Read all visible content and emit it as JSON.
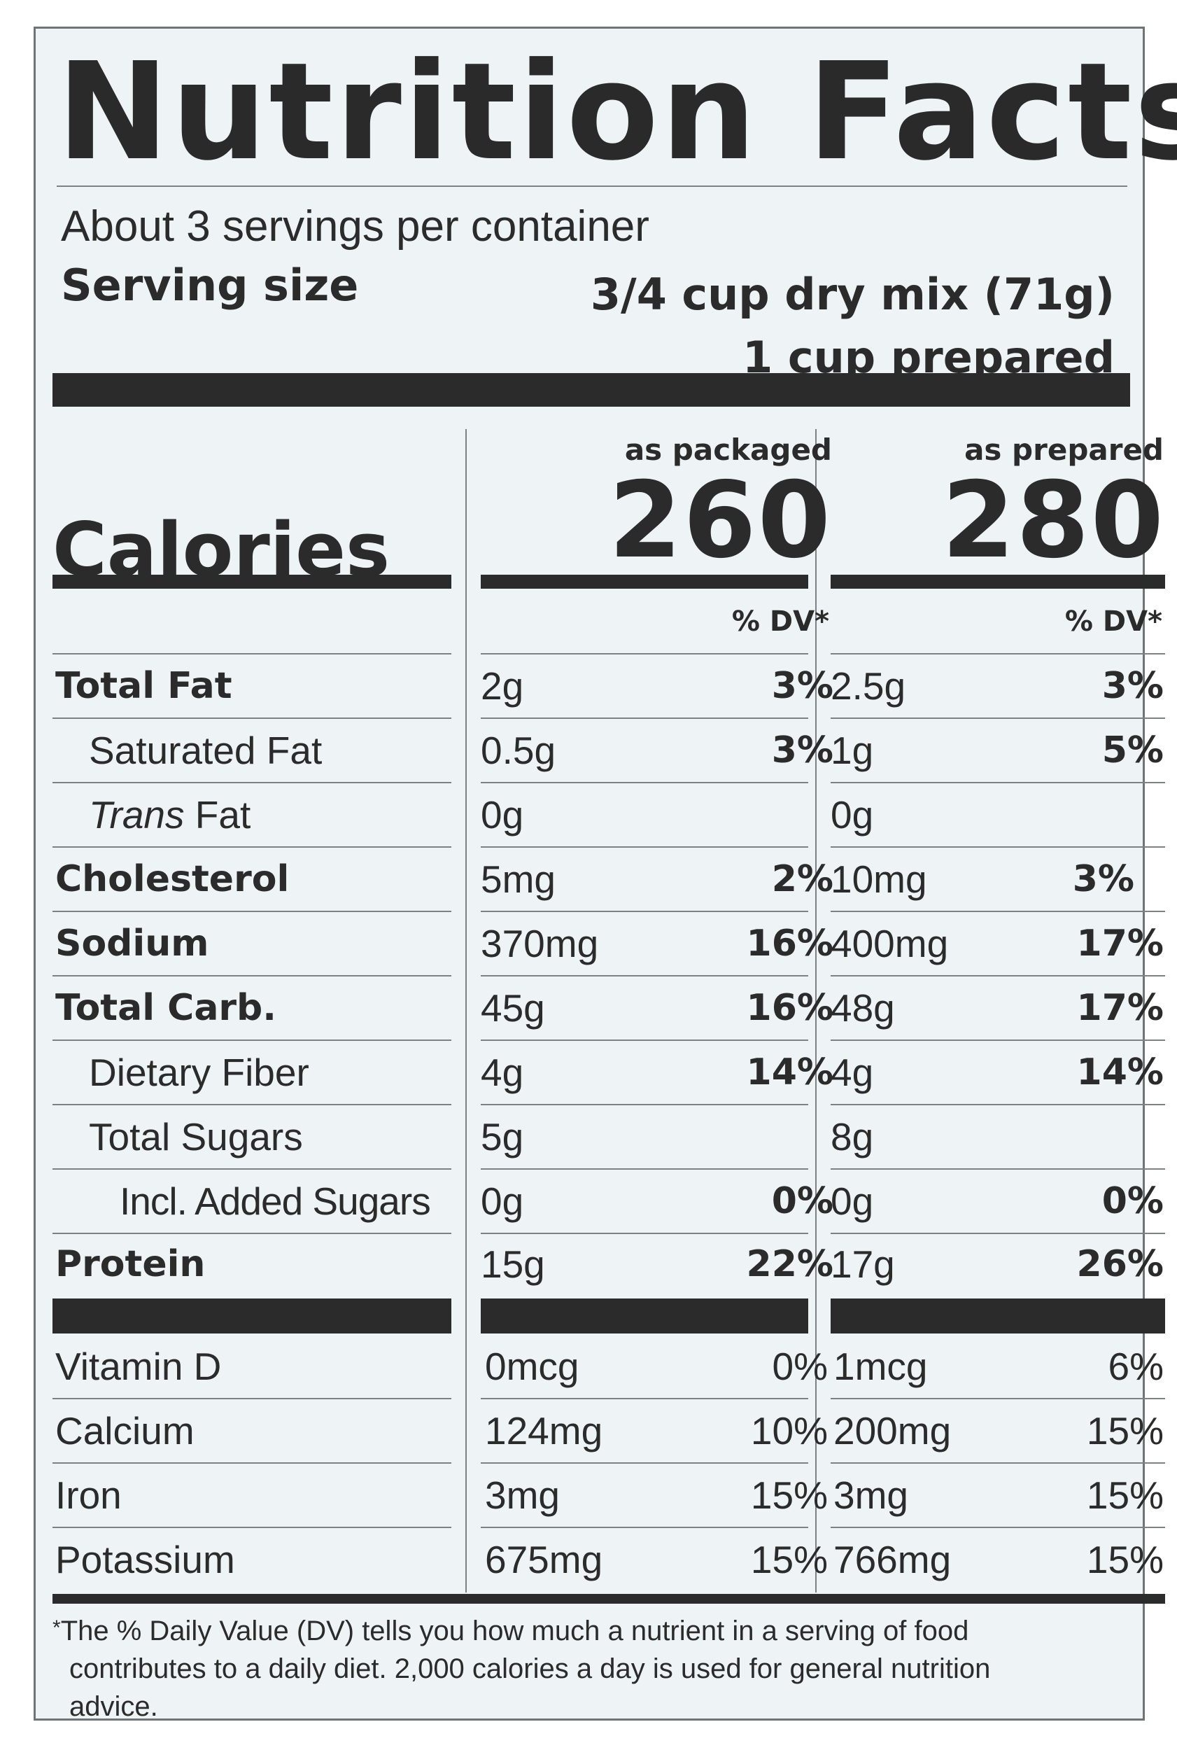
{
  "title": "Nutrition Facts",
  "servings_per_container": "About 3 servings per container",
  "serving_size": {
    "label": "Serving size",
    "dry": "3/4 cup dry mix (71g)",
    "prepared": "1 cup prepared"
  },
  "columns": {
    "packaged_header": "as packaged",
    "prepared_header": "as prepared",
    "dv_header": "% DV*"
  },
  "calories": {
    "label": "Calories",
    "packaged": "260",
    "prepared": "280"
  },
  "nutrients": [
    {
      "name": "Total Fat",
      "packaged_amount": "2g",
      "packaged_dv": "3%",
      "prepared_amount": "2.5g",
      "prepared_dv": "3%"
    },
    {
      "name": "Saturated Fat",
      "packaged_amount": "0.5g",
      "packaged_dv": "3%",
      "prepared_amount": "1g",
      "prepared_dv": "5%"
    },
    {
      "name_italic": "Trans",
      "name_rest": " Fat",
      "packaged_amount": "0g",
      "packaged_dv": "",
      "prepared_amount": "0g",
      "prepared_dv": ""
    },
    {
      "name": "Cholesterol",
      "packaged_amount": "5mg",
      "packaged_dv": "2%",
      "prepared_amount": "10mg",
      "prepared_dv": "3%"
    },
    {
      "name": "Sodium",
      "packaged_amount": "370mg",
      "packaged_dv": "16%",
      "prepared_amount": "400mg",
      "prepared_dv": "17%"
    },
    {
      "name": "Total Carb.",
      "packaged_amount": "45g",
      "packaged_dv": "16%",
      "prepared_amount": "48g",
      "prepared_dv": "17%"
    },
    {
      "name": "Dietary Fiber",
      "packaged_amount": "4g",
      "packaged_dv": "14%",
      "prepared_amount": "4g",
      "prepared_dv": "14%"
    },
    {
      "name": "Total Sugars",
      "packaged_amount": "5g",
      "packaged_dv": "",
      "prepared_amount": "8g",
      "prepared_dv": ""
    },
    {
      "name": "Incl. Added Sugars",
      "packaged_amount": "0g",
      "packaged_dv": "0%",
      "prepared_amount": "0g",
      "prepared_dv": "0%"
    },
    {
      "name": "Protein",
      "packaged_amount": "15g",
      "packaged_dv": "22%",
      "prepared_amount": "17g",
      "prepared_dv": "26%"
    }
  ],
  "vitamins": [
    {
      "name": "Vitamin D",
      "packaged_amount": "0mcg",
      "packaged_dv": "0%",
      "prepared_amount": "1mcg",
      "prepared_dv": "6%"
    },
    {
      "name": "Calcium",
      "packaged_amount": "124mg",
      "packaged_dv": "10%",
      "prepared_amount": "200mg",
      "prepared_dv": "15%"
    },
    {
      "name": "Iron",
      "packaged_amount": "3mg",
      "packaged_dv": "15%",
      "prepared_amount": "3mg",
      "prepared_dv": "15%"
    },
    {
      "name": "Potassium",
      "packaged_amount": "675mg",
      "packaged_dv": "15%",
      "prepared_amount": "766mg",
      "prepared_dv": "15%"
    }
  ],
  "footnote": {
    "asterisk": "*",
    "line1": "The % Daily Value (DV) tells you how much a nutrient in a serving of food",
    "line2": "contributes to a daily diet. 2,000 calories a day is used for general nutrition",
    "line3": "advice."
  }
}
